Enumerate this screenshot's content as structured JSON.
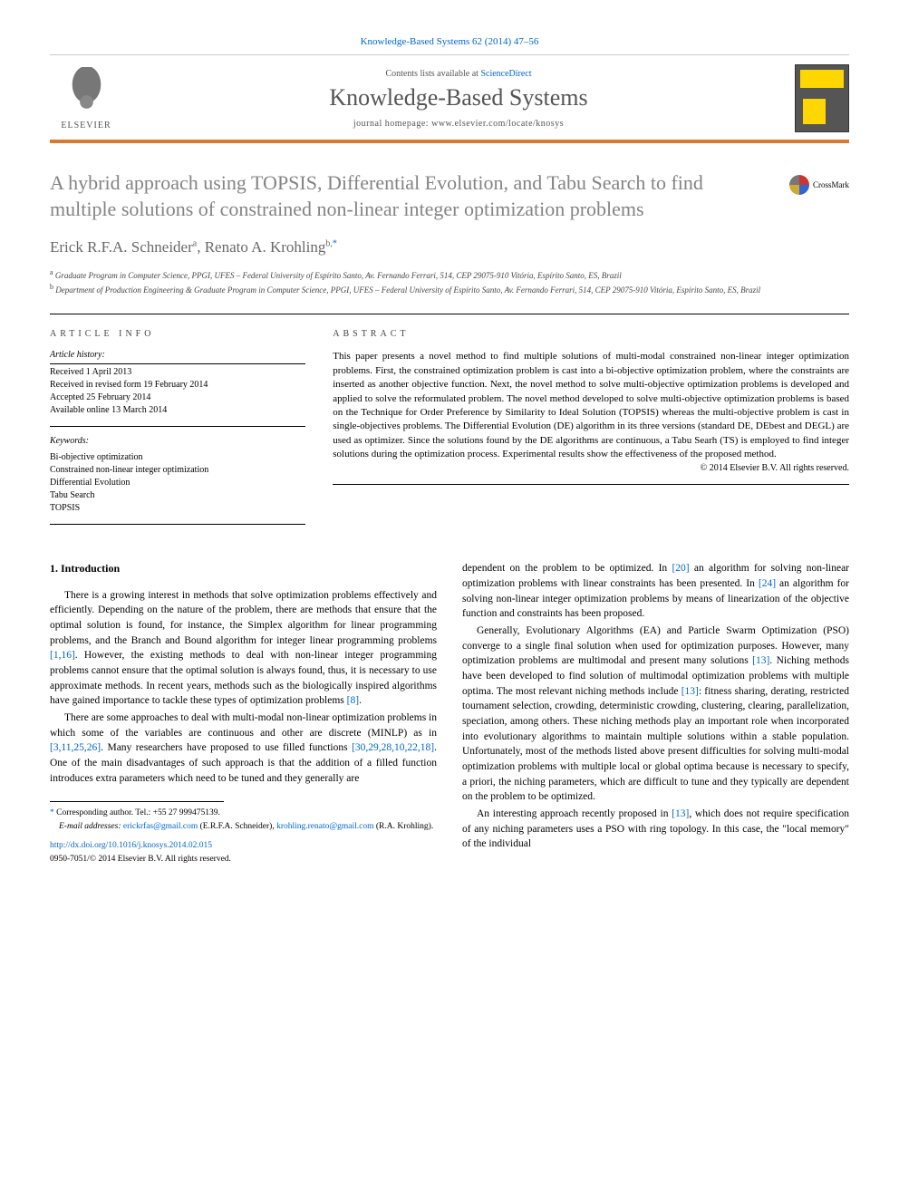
{
  "top_citation": "Knowledge-Based Systems 62 (2014) 47–56",
  "masthead": {
    "contents_prefix": "Contents lists available at ",
    "contents_link": "ScienceDirect",
    "journal_name": "Knowledge-Based Systems",
    "homepage_prefix": "journal homepage: ",
    "homepage_url": "www.elsevier.com/locate/knosys",
    "publisher_label": "ELSEVIER"
  },
  "title": "A hybrid approach using TOPSIS, Differential Evolution, and Tabu Search to find multiple solutions of constrained non-linear integer optimization problems",
  "crossmark_label": "CrossMark",
  "authors": {
    "a1_name": "Erick R.F.A. Schneider",
    "a1_sup": "a",
    "a2_name": "Renato A. Krohling",
    "a2_sup": "b,",
    "a2_corr": "*"
  },
  "affiliations": {
    "a": "Graduate Program in Computer Science, PPGI, UFES – Federal University of Espírito Santo, Av. Fernando Ferrari, 514, CEP 29075-910 Vitória, Espírito Santo, ES, Brazil",
    "b": "Department of Production Engineering & Graduate Program in Computer Science, PPGI, UFES – Federal University of Espírito Santo, Av. Fernando Ferrari, 514, CEP 29075-910 Vitória, Espírito Santo, ES, Brazil"
  },
  "info_heading": "ARTICLE INFO",
  "abstract_heading": "ABSTRACT",
  "history_heading": "Article history:",
  "history": {
    "received": "Received 1 April 2013",
    "revised": "Received in revised form 19 February 2014",
    "accepted": "Accepted 25 February 2014",
    "online": "Available online 13 March 2014"
  },
  "keywords_heading": "Keywords:",
  "keywords": {
    "k1": "Bi-objective optimization",
    "k2": "Constrained non-linear integer optimization",
    "k3": "Differential Evolution",
    "k4": "Tabu Search",
    "k5": "TOPSIS"
  },
  "abstract_text": "This paper presents a novel method to find multiple solutions of multi-modal constrained non-linear integer optimization problems. First, the constrained optimization problem is cast into a bi-objective optimization problem, where the constraints are inserted as another objective function. Next, the novel method to solve multi-objective optimization problems is developed and applied to solve the reformulated problem. The novel method developed to solve multi-objective optimization problems is based on the Technique for Order Preference by Similarity to Ideal Solution (TOPSIS) whereas the multi-objective problem is cast in single-objectives problems. The Differential Evolution (DE) algorithm in its three versions (standard DE, DEbest and DEGL) are used as optimizer. Since the solutions found by the DE algorithms are continuous, a Tabu Searh (TS) is employed to find integer solutions during the optimization process. Experimental results show the effectiveness of the proposed method.",
  "abstract_copyright": "© 2014 Elsevier B.V. All rights reserved.",
  "section1_heading": "1. Introduction",
  "para1": "There is a growing interest in methods that solve optimization problems effectively and efficiently. Depending on the nature of the problem, there are methods that ensure that the optimal solution is found, for instance, the Simplex algorithm for linear programming problems, and the Branch and Bound algorithm for integer linear programming problems ",
  "para1_ref1": "[1,16]",
  "para1b": ". However, the existing methods to deal with non-linear integer programming problems cannot ensure that the optimal solution is always found, thus, it is necessary to use approximate methods. In recent years, methods such as the biologically inspired algorithms have gained importance to tackle these types of optimization problems ",
  "para1_ref2": "[8]",
  "para1c": ".",
  "para2": "There are some approaches to deal with multi-modal non-linear optimization problems in which some of the variables are continuous and other are discrete (MINLP) as in ",
  "para2_ref1": "[3,11,25,26]",
  "para2b": ". Many researchers have proposed to use filled functions ",
  "para2_ref2": "[30,29,28,10,22,18]",
  "para2c": ". One of the main disadvantages of such approach is that the addition of a filled function introduces extra parameters which need to be tuned and they generally are",
  "para2_cont": "dependent on the problem to be optimized. In ",
  "para2_ref3": "[20]",
  "para2d": " an algorithm for solving non-linear optimization problems with linear constraints has been presented. In ",
  "para2_ref4": "[24]",
  "para2e": " an algorithm for solving non-linear integer optimization problems by means of linearization of the objective function and constraints has been proposed.",
  "para3": "Generally, Evolutionary Algorithms (EA) and Particle Swarm Optimization (PSO) converge to a single final solution when used for optimization purposes. However, many optimization problems are multimodal and present many solutions ",
  "para3_ref1": "[13]",
  "para3b": ". Niching methods have been developed to find solution of multimodal optimization problems with multiple optima. The most relevant niching methods include ",
  "para3_ref2": "[13]",
  "para3c": ": fitness sharing, derating, restricted tournament selection, crowding, deterministic crowding, clustering, clearing, parallelization, speciation, among others. These niching methods play an important role when incorporated into evolutionary algorithms to maintain multiple solutions within a stable population. Unfortunately, most of the methods listed above present difficulties for solving multi-modal optimization problems with multiple local or global optima because is necessary to specify, a priori, the niching parameters, which are difficult to tune and they typically are dependent on the problem to be optimized.",
  "para4": "An interesting approach recently proposed in ",
  "para4_ref1": "[13]",
  "para4b": ", which does not require specification of any niching parameters uses a PSO with ring topology. In this case, the \"local memory\" of the individual",
  "footnotes": {
    "corr": "Corresponding author. Tel.: +55 27 999475139.",
    "email_label": "E-mail addresses:",
    "e1": "erickrfas@gmail.com",
    "e1_who": "(E.R.F.A. Schneider),",
    "e2": "krohling.renato@gmail.com",
    "e2_who": "(R.A. Krohling)."
  },
  "doi": "http://dx.doi.org/10.1016/j.knosys.2014.02.015",
  "issn_line": "0950-7051/© 2014 Elsevier B.V. All rights reserved.",
  "colors": {
    "link": "#0066cc",
    "rule": "#d97a2e",
    "title_gray": "#848484",
    "journal_gray": "#555555"
  }
}
